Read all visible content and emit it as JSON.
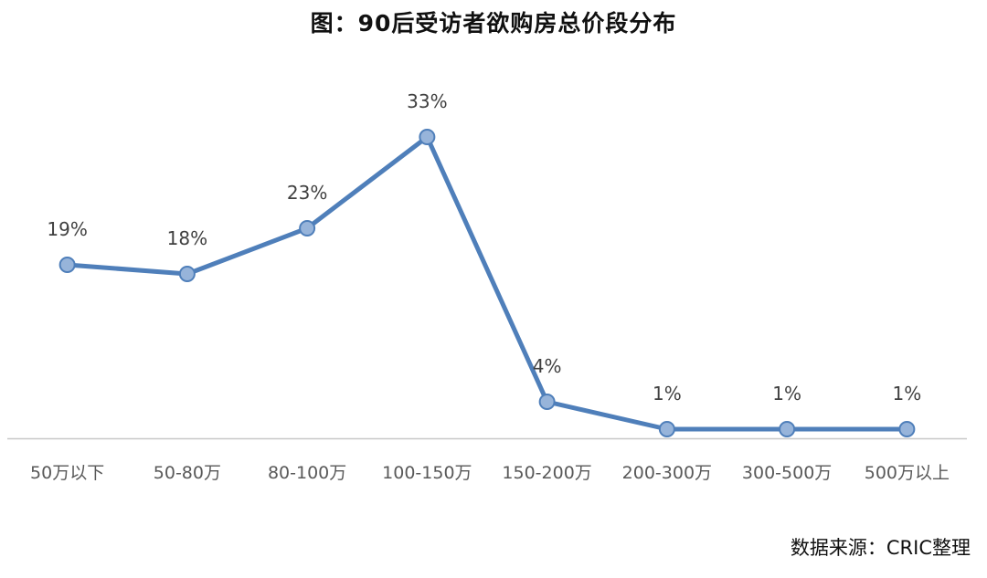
{
  "chart_data": {
    "type": "line",
    "title": "图：90后受访者欲购房总价段分布",
    "categories": [
      "50万以下",
      "50-80万",
      "80-100万",
      "100-150万",
      "150-200万",
      "200-300万",
      "300-500万",
      "500万以上"
    ],
    "values": [
      19,
      18,
      23,
      33,
      4,
      1,
      1,
      1
    ],
    "value_labels": [
      "19%",
      "18%",
      "23%",
      "33%",
      "4%",
      "1%",
      "1%",
      "1%"
    ],
    "unit": "%",
    "xlabel": "",
    "ylabel": "",
    "ylim": [
      0,
      35
    ],
    "grid": false,
    "legend": "none",
    "colors": {
      "line": "#4f7fba",
      "marker_fill": "#97b4da",
      "marker_stroke": "#4f7fba",
      "axis": "#c8c8c8",
      "tick_text": "#595959",
      "label_text": "#404040"
    }
  },
  "source_note": "数据来源：CRIC整理"
}
